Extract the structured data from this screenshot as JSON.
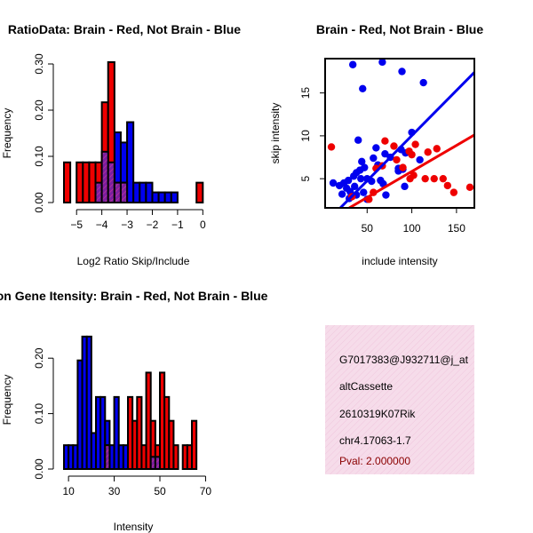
{
  "chart_data": [
    {
      "id": "ratio",
      "type": "histogram",
      "title": "RatioData: Brain - Red, Not Brain - Blue",
      "xlabel": "Log2 Ratio Skip/Include",
      "ylabel": "Frequency",
      "xlim": [
        -5.5,
        0.2
      ],
      "ylim": [
        0,
        0.3
      ],
      "xticks": [
        -5,
        -4,
        -3,
        -2,
        -1,
        0
      ],
      "xtick_labels": [
        "−5",
        "−4",
        "−3",
        "−2",
        "−1",
        "0"
      ],
      "yticks": [
        0.0,
        0.1,
        0.2,
        0.3
      ],
      "ytick_labels": [
        "0.00",
        "0.10",
        "0.20",
        "0.30"
      ],
      "series": [
        {
          "name": "Not Brain",
          "color": "#0000ee",
          "bins": [
            {
              "x0": -4.25,
              "x1": -4.0,
              "y": 0.043
            },
            {
              "x0": -4.0,
              "x1": -3.75,
              "y": 0.11
            },
            {
              "x0": -3.75,
              "x1": -3.5,
              "y": 0.087
            },
            {
              "x0": -3.5,
              "x1": -3.25,
              "y": 0.152
            },
            {
              "x0": -3.25,
              "x1": -3.0,
              "y": 0.13
            },
            {
              "x0": -3.0,
              "x1": -2.75,
              "y": 0.174
            },
            {
              "x0": -2.75,
              "x1": -2.5,
              "y": 0.043
            },
            {
              "x0": -2.5,
              "x1": -2.25,
              "y": 0.043
            },
            {
              "x0": -2.25,
              "x1": -2.0,
              "y": 0.043
            },
            {
              "x0": -2.0,
              "x1": -1.75,
              "y": 0.022
            },
            {
              "x0": -1.75,
              "x1": -1.5,
              "y": 0.022
            },
            {
              "x0": -1.5,
              "x1": -1.25,
              "y": 0.022
            },
            {
              "x0": -1.25,
              "x1": -1.0,
              "y": 0.022
            }
          ]
        },
        {
          "name": "Brain",
          "color": "#ee0000",
          "bins": [
            {
              "x0": -5.5,
              "x1": -5.25,
              "y": 0.087
            },
            {
              "x0": -5.0,
              "x1": -4.75,
              "y": 0.087
            },
            {
              "x0": -4.75,
              "x1": -4.5,
              "y": 0.087
            },
            {
              "x0": -4.5,
              "x1": -4.25,
              "y": 0.087
            },
            {
              "x0": -4.25,
              "x1": -4.0,
              "y": 0.087
            },
            {
              "x0": -4.0,
              "x1": -3.75,
              "y": 0.217
            },
            {
              "x0": -3.75,
              "x1": -3.5,
              "y": 0.304
            },
            {
              "x0": -3.5,
              "x1": -3.25,
              "y": 0.043
            },
            {
              "x0": -3.25,
              "x1": -3.0,
              "y": 0.043
            },
            {
              "x0": -0.25,
              "x1": 0.0,
              "y": 0.043
            }
          ]
        }
      ]
    },
    {
      "id": "scatter",
      "type": "scatter",
      "title": "Brain - Red, Not Brain - Blue",
      "xlabel": "include intensity",
      "ylabel": "skip intensity",
      "xlim": [
        3,
        170
      ],
      "ylim": [
        1.6,
        19
      ],
      "xticks": [
        50,
        100,
        150
      ],
      "xtick_labels": [
        "50",
        "100",
        "150"
      ],
      "yticks": [
        5,
        10,
        15
      ],
      "ytick_labels": [
        "5",
        "10",
        "15"
      ],
      "series": [
        {
          "name": "Not Brain",
          "color": "#0000ee",
          "points": [
            [
              34,
              18.3
            ],
            [
              67,
              18.6
            ],
            [
              89,
              17.5
            ],
            [
              45,
              15.5
            ],
            [
              113,
              16.2
            ],
            [
              100,
              10.4
            ],
            [
              40,
              9.5
            ],
            [
              60,
              8.6
            ],
            [
              88,
              8.4
            ],
            [
              93,
              8.0
            ],
            [
              70,
              7.9
            ],
            [
              76,
              7.5
            ],
            [
              57,
              7.4
            ],
            [
              44,
              7.0
            ],
            [
              47,
              6.3
            ],
            [
              62,
              6.6
            ],
            [
              85,
              6.2
            ],
            [
              90,
              6.1
            ],
            [
              109,
              7.2
            ],
            [
              42,
              6.0
            ],
            [
              38,
              5.7
            ],
            [
              35,
              5.3
            ],
            [
              43,
              5.0
            ],
            [
              50,
              5.0
            ],
            [
              55,
              4.7
            ],
            [
              65,
              4.8
            ],
            [
              29,
              4.8
            ],
            [
              24,
              4.5
            ],
            [
              36,
              4.1
            ],
            [
              12,
              4.5
            ],
            [
              19,
              4.2
            ],
            [
              27,
              3.9
            ],
            [
              31,
              3.5
            ],
            [
              22,
              3.2
            ],
            [
              38,
              3.1
            ],
            [
              46,
              3.4
            ],
            [
              92,
              4.1
            ],
            [
              71,
              3.1
            ],
            [
              50,
              2.6
            ],
            [
              30,
              2.7
            ],
            [
              68,
              4.4
            ],
            [
              85,
              5.9
            ]
          ]
        },
        {
          "name": "Brain",
          "color": "#ee0000",
          "points": [
            [
              10,
              8.7
            ],
            [
              70,
              9.4
            ],
            [
              80,
              8.8
            ],
            [
              104,
              9.0
            ],
            [
              97,
              8.2
            ],
            [
              100,
              7.8
            ],
            [
              118,
              8.1
            ],
            [
              128,
              8.5
            ],
            [
              83,
              7.2
            ],
            [
              67,
              6.5
            ],
            [
              90,
              6.3
            ],
            [
              60,
              6.2
            ],
            [
              102,
              5.4
            ],
            [
              115,
              5.0
            ],
            [
              98,
              5.0
            ],
            [
              135,
              5.0
            ],
            [
              125,
              5.0
            ],
            [
              140,
              4.2
            ],
            [
              147,
              3.4
            ],
            [
              165,
              4.0
            ],
            [
              57,
              3.4
            ],
            [
              52,
              2.6
            ],
            [
              33,
              2.9
            ]
          ]
        }
      ],
      "fit_lines": [
        {
          "name": "Not Brain",
          "color": "#0000ee",
          "from": [
            20,
            1.6
          ],
          "to": [
            170,
            17.4
          ]
        },
        {
          "name": "Brain",
          "color": "#ee0000",
          "from": [
            30,
            1.6
          ],
          "to": [
            170,
            10.1
          ]
        }
      ]
    },
    {
      "id": "intensity",
      "type": "histogram",
      "title": "Exon Gene Itensity: Brain - Red, Not Brain - Blue",
      "xlabel": "Intensity",
      "ylabel": "Frequency",
      "xlim": [
        8,
        71
      ],
      "ylim": [
        0,
        0.25
      ],
      "xticks": [
        10,
        30,
        50,
        70
      ],
      "xtick_labels": [
        "10",
        "30",
        "50",
        "70"
      ],
      "yticks": [
        0.0,
        0.1,
        0.2
      ],
      "ytick_labels": [
        "0.00",
        "0.10",
        "0.20"
      ],
      "series": [
        {
          "name": "Not Brain",
          "color": "#0000ee",
          "bins": [
            {
              "x0": 8,
              "x1": 10,
              "y": 0.043
            },
            {
              "x0": 10,
              "x1": 12,
              "y": 0.043
            },
            {
              "x0": 12,
              "x1": 14,
              "y": 0.043
            },
            {
              "x0": 14,
              "x1": 16,
              "y": 0.196
            },
            {
              "x0": 16,
              "x1": 18,
              "y": 0.239
            },
            {
              "x0": 18,
              "x1": 20,
              "y": 0.239
            },
            {
              "x0": 20,
              "x1": 22,
              "y": 0.065
            },
            {
              "x0": 22,
              "x1": 24,
              "y": 0.13
            },
            {
              "x0": 24,
              "x1": 26,
              "y": 0.13
            },
            {
              "x0": 26,
              "x1": 28,
              "y": 0.087
            },
            {
              "x0": 28,
              "x1": 30,
              "y": 0.043
            },
            {
              "x0": 30,
              "x1": 32,
              "y": 0.13
            },
            {
              "x0": 32,
              "x1": 34,
              "y": 0.043
            },
            {
              "x0": 34,
              "x1": 36,
              "y": 0.043
            },
            {
              "x0": 46,
              "x1": 48,
              "y": 0.022
            },
            {
              "x0": 48,
              "x1": 50,
              "y": 0.022
            }
          ]
        },
        {
          "name": "Brain",
          "color": "#ee0000",
          "bins": [
            {
              "x0": 26,
              "x1": 28,
              "y": 0.043
            },
            {
              "x0": 36,
              "x1": 38,
              "y": 0.13
            },
            {
              "x0": 38,
              "x1": 40,
              "y": 0.087
            },
            {
              "x0": 40,
              "x1": 42,
              "y": 0.13
            },
            {
              "x0": 42,
              "x1": 44,
              "y": 0.043
            },
            {
              "x0": 44,
              "x1": 46,
              "y": 0.174
            },
            {
              "x0": 46,
              "x1": 48,
              "y": 0.087
            },
            {
              "x0": 48,
              "x1": 50,
              "y": 0.043
            },
            {
              "x0": 50,
              "x1": 52,
              "y": 0.174
            },
            {
              "x0": 52,
              "x1": 54,
              "y": 0.13
            },
            {
              "x0": 54,
              "x1": 56,
              "y": 0.087
            },
            {
              "x0": 56,
              "x1": 58,
              "y": 0.043
            },
            {
              "x0": 60,
              "x1": 62,
              "y": 0.043
            },
            {
              "x0": 62,
              "x1": 64,
              "y": 0.043
            },
            {
              "x0": 64,
              "x1": 66,
              "y": 0.087
            }
          ]
        }
      ]
    }
  ],
  "info_panel": {
    "background": "#f6dcea",
    "lines": [
      "G7017383@J932711@j_at",
      "altCassette",
      "2610319K07Rik",
      "chr4.17063-1.7"
    ],
    "pval": "Pval: 2.000000",
    "pval_color": "#8b0000"
  }
}
